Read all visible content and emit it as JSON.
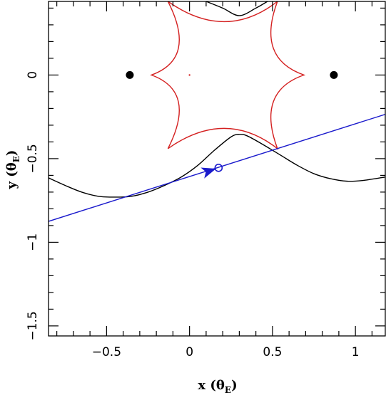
{
  "chart_data": {
    "type": "line",
    "xlabel": "x (θE)",
    "ylabel": "y (θE)",
    "xlabel_parts": {
      "main": "x (θ",
      "sub": "E",
      "close": ")"
    },
    "ylabel_parts": {
      "main": "y (θ",
      "sub": "E",
      "close": ")"
    },
    "xlim": [
      -0.85,
      1.18
    ],
    "ylim": [
      -1.56,
      0.44
    ],
    "x_ticks": [
      -0.5,
      0,
      0.5,
      1
    ],
    "x_tick_labels": [
      "−0.5",
      "0",
      "0.5",
      "1"
    ],
    "y_ticks": [
      0,
      -0.5,
      -1,
      -1.5
    ],
    "y_tick_labels": [
      "0",
      "−0.5",
      "−1",
      "−1.5"
    ],
    "lens_masses": [
      {
        "x": -0.36,
        "y": 0.0
      },
      {
        "x": 0.87,
        "y": 0.0
      }
    ],
    "caustic": {
      "color": "#d42020",
      "center": [
        0.23,
        0.0
      ],
      "cusps": [
        [
          -0.13,
          0.44
        ],
        [
          -0.23,
          0.0
        ],
        [
          -0.13,
          -0.44
        ],
        [
          0.53,
          -0.44
        ],
        [
          0.69,
          0.0
        ],
        [
          0.53,
          0.44
        ]
      ],
      "dot": {
        "x": 0.0,
        "y": 0.0
      }
    },
    "magnification_curve": {
      "color": "#000000",
      "baseline_y": -0.62,
      "peak_y": -0.35,
      "points": [
        [
          -0.85,
          -0.615
        ],
        [
          -0.75,
          -0.66
        ],
        [
          -0.65,
          -0.7
        ],
        [
          -0.55,
          -0.725
        ],
        [
          -0.45,
          -0.73
        ],
        [
          -0.35,
          -0.725
        ],
        [
          -0.25,
          -0.7
        ],
        [
          -0.15,
          -0.66
        ],
        [
          -0.05,
          -0.61
        ],
        [
          0.05,
          -0.54
        ],
        [
          0.15,
          -0.45
        ],
        [
          0.25,
          -0.37
        ],
        [
          0.3,
          -0.355
        ],
        [
          0.35,
          -0.365
        ],
        [
          0.45,
          -0.42
        ],
        [
          0.55,
          -0.48
        ],
        [
          0.65,
          -0.54
        ],
        [
          0.75,
          -0.59
        ],
        [
          0.85,
          -0.62
        ],
        [
          0.95,
          -0.635
        ],
        [
          1.05,
          -0.63
        ],
        [
          1.18,
          -0.61
        ]
      ],
      "top_arc_points": [
        [
          0.1,
          0.44
        ],
        [
          0.2,
          0.4
        ],
        [
          0.3,
          0.355
        ],
        [
          0.4,
          0.4
        ],
        [
          0.47,
          0.44
        ]
      ]
    },
    "source_trajectory": {
      "color": "#1a1acc",
      "start": [
        -0.85,
        -0.875
      ],
      "end": [
        1.18,
        -0.235
      ],
      "source_position": {
        "x": 0.175,
        "y": -0.555
      },
      "arrow_tip": {
        "x": 0.16,
        "y": -0.56
      }
    },
    "grid": false
  }
}
